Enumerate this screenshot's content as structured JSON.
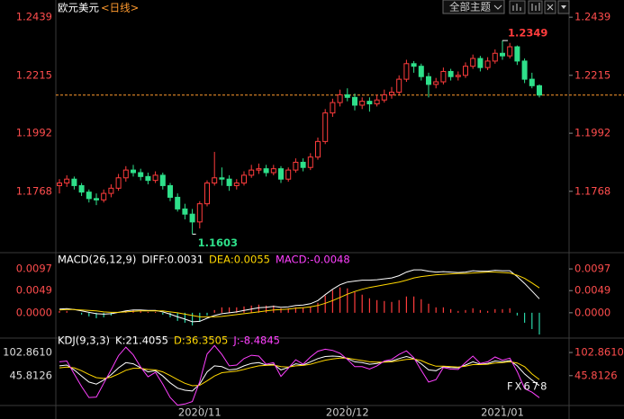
{
  "header": {
    "symbol": "欧元美元",
    "period": "<日线>",
    "theme_button": "全部主题"
  },
  "watermark": "FX678",
  "chart_data": [
    {
      "type": "candlestick",
      "categories": [
        null,
        null,
        null,
        null,
        null,
        null,
        null,
        null,
        null,
        null,
        null,
        null,
        null,
        null,
        null,
        null,
        null,
        null,
        null,
        "2020/11",
        null,
        null,
        null,
        null,
        null,
        null,
        null,
        null,
        null,
        null,
        null,
        null,
        null,
        null,
        null,
        null,
        null,
        null,
        null,
        "2020/12",
        null,
        null,
        null,
        null,
        null,
        null,
        null,
        null,
        null,
        null,
        null,
        null,
        null,
        null,
        null,
        null,
        null,
        null,
        null,
        null,
        "2021/01",
        null,
        null,
        null,
        null,
        null
      ],
      "open": [
        1.179,
        1.18,
        1.1815,
        1.179,
        1.1765,
        1.174,
        1.1735,
        1.176,
        1.178,
        1.182,
        1.185,
        1.184,
        1.1825,
        1.181,
        1.183,
        1.179,
        1.1745,
        1.17,
        1.168,
        1.165,
        1.172,
        1.18,
        1.182,
        1.1815,
        1.179,
        1.18,
        1.183,
        1.185,
        1.1855,
        1.184,
        1.1855,
        1.1815,
        1.185,
        1.188,
        1.186,
        1.19,
        1.196,
        1.207,
        1.211,
        1.214,
        1.213,
        1.21,
        1.2115,
        1.2105,
        1.212,
        1.214,
        1.215,
        1.22,
        1.226,
        1.225,
        1.221,
        1.218,
        1.219,
        1.223,
        1.221,
        1.2215,
        1.225,
        1.228,
        1.2245,
        1.227,
        1.23,
        1.229,
        1.2325,
        1.227,
        1.22,
        1.2175
      ],
      "high": [
        1.1815,
        1.183,
        1.1825,
        1.18,
        1.1775,
        1.176,
        1.1775,
        1.1795,
        1.1835,
        1.1865,
        1.187,
        1.1855,
        1.184,
        1.1845,
        1.184,
        1.18,
        1.176,
        1.172,
        1.17,
        1.173,
        1.181,
        1.192,
        1.186,
        1.183,
        1.1815,
        1.1845,
        1.187,
        1.1875,
        1.187,
        1.187,
        1.1865,
        1.186,
        1.1895,
        1.1895,
        1.1915,
        1.1975,
        1.2085,
        1.2125,
        1.216,
        1.2165,
        1.2145,
        1.213,
        1.213,
        1.214,
        1.216,
        1.217,
        1.2215,
        1.2275,
        1.227,
        1.226,
        1.2225,
        1.2205,
        1.2245,
        1.224,
        1.223,
        1.2265,
        1.2295,
        1.229,
        1.2285,
        1.2315,
        1.2349,
        1.234,
        1.233,
        1.228,
        1.2225,
        1.218
      ],
      "low": [
        1.176,
        1.1785,
        1.1775,
        1.175,
        1.1725,
        1.1715,
        1.1725,
        1.1745,
        1.177,
        1.1805,
        1.1825,
        1.181,
        1.1795,
        1.18,
        1.1775,
        1.173,
        1.169,
        1.166,
        1.1603,
        1.1625,
        1.171,
        1.179,
        1.179,
        1.177,
        1.1775,
        1.179,
        1.182,
        1.1835,
        1.1825,
        1.183,
        1.18,
        1.1805,
        1.184,
        1.1845,
        1.185,
        1.189,
        1.195,
        1.2055,
        1.2095,
        1.2115,
        1.208,
        1.2085,
        1.2075,
        1.2095,
        1.211,
        1.2125,
        1.214,
        1.219,
        1.2225,
        1.2195,
        1.213,
        1.2165,
        1.218,
        1.2195,
        1.2195,
        1.2205,
        1.224,
        1.223,
        1.2235,
        1.226,
        1.2275,
        1.228,
        1.2255,
        1.2185,
        1.2165,
        1.213
      ],
      "close": [
        1.18,
        1.1815,
        1.179,
        1.1765,
        1.174,
        1.1735,
        1.176,
        1.178,
        1.182,
        1.185,
        1.184,
        1.1825,
        1.181,
        1.183,
        1.179,
        1.1745,
        1.17,
        1.168,
        1.165,
        1.172,
        1.18,
        1.182,
        1.1815,
        1.179,
        1.18,
        1.183,
        1.185,
        1.1855,
        1.184,
        1.1855,
        1.1815,
        1.185,
        1.188,
        1.186,
        1.19,
        1.196,
        1.207,
        1.211,
        1.214,
        1.213,
        1.21,
        1.2115,
        1.2105,
        1.212,
        1.214,
        1.215,
        1.22,
        1.226,
        1.225,
        1.221,
        1.218,
        1.219,
        1.223,
        1.221,
        1.2215,
        1.225,
        1.228,
        1.2245,
        1.227,
        1.23,
        1.229,
        1.2325,
        1.227,
        1.22,
        1.2175,
        1.2139
      ],
      "up_color": "#ff3c3c",
      "down_color": "#2ee08a",
      "ylim": [
        1.1542,
        1.2488
      ],
      "yticks": [
        1.1768,
        1.1992,
        1.2215,
        1.2439
      ],
      "label_color": "#ff4d4d",
      "left_label_color": "#ff4d4d",
      "annotations": [
        1.2349,
        1.1603
      ],
      "last_price": 1.2139,
      "last_price_color": "#ff9a2e"
    },
    {
      "type": "macd",
      "title": "MACD(26,12,9)",
      "series": [
        {
          "name": "DIFF:0.0031",
          "color": "#ffffff",
          "values": [
            0.0008,
            0.0009,
            0.0007,
            0.0004,
            0.0001,
            -0.0002,
            -0.0003,
            -0.0002,
            0.0001,
            0.0004,
            0.0006,
            0.0006,
            0.0005,
            0.0005,
            0.0002,
            -0.0003,
            -0.0009,
            -0.0014,
            -0.002,
            -0.0019,
            -0.0012,
            -0.0006,
            -0.0002,
            0.0,
            0.0002,
            0.0005,
            0.0008,
            0.0011,
            0.0012,
            0.0014,
            0.0012,
            0.0013,
            0.0016,
            0.0017,
            0.002,
            0.0027,
            0.004,
            0.0052,
            0.0062,
            0.0068,
            0.007,
            0.0072,
            0.0072,
            0.0073,
            0.0075,
            0.0077,
            0.0082,
            0.009,
            0.0095,
            0.0095,
            0.0092,
            0.009,
            0.0091,
            0.009,
            0.0089,
            0.009,
            0.0093,
            0.0092,
            0.0092,
            0.0094,
            0.0093,
            0.0093,
            0.008,
            0.0065,
            0.0048,
            0.0031
          ]
        },
        {
          "name": "DEA:0.0055",
          "color": "#ffd700",
          "values": [
            0.0006,
            0.0007,
            0.0007,
            0.0006,
            0.0005,
            0.0004,
            0.0002,
            0.0001,
            0.0001,
            0.0002,
            0.0003,
            0.0004,
            0.0004,
            0.0004,
            0.0004,
            0.0002,
            0.0,
            -0.0003,
            -0.0006,
            -0.0009,
            -0.0009,
            -0.0009,
            -0.0008,
            -0.0006,
            -0.0004,
            -0.0002,
            0.0,
            0.0002,
            0.0004,
            0.0006,
            0.0007,
            0.0008,
            0.001,
            0.0011,
            0.0013,
            0.0016,
            0.0021,
            0.0027,
            0.0034,
            0.0041,
            0.0047,
            0.0052,
            0.0056,
            0.0059,
            0.0062,
            0.0065,
            0.0068,
            0.0072,
            0.0077,
            0.008,
            0.0082,
            0.0084,
            0.0085,
            0.0086,
            0.0087,
            0.0087,
            0.0088,
            0.0089,
            0.009,
            0.009,
            0.0089,
            0.0088,
            0.0083,
            0.0076,
            0.0066,
            0.0055
          ]
        },
        {
          "name": "MACD:-0.0048",
          "color": "#ff40ff",
          "style": "bar",
          "up_color": "#ff3c3c",
          "down_color": "#2ad6a8",
          "values": [
            0.0004,
            0.0004,
            0.0,
            -0.0004,
            -0.0008,
            -0.0012,
            -0.001,
            -0.0006,
            0.0,
            0.0004,
            0.0006,
            0.0004,
            0.0002,
            0.0002,
            -0.0004,
            -0.001,
            -0.0018,
            -0.0022,
            -0.0028,
            -0.002,
            -0.0006,
            0.0006,
            0.0012,
            0.0012,
            0.0012,
            0.0014,
            0.0016,
            0.0018,
            0.0016,
            0.0016,
            0.001,
            0.001,
            0.0012,
            0.0012,
            0.0014,
            0.0022,
            0.0038,
            0.005,
            0.0056,
            0.0054,
            0.0046,
            0.004,
            0.0032,
            0.0028,
            0.0026,
            0.0024,
            0.0028,
            0.0036,
            0.0036,
            0.003,
            0.002,
            0.0012,
            0.0012,
            0.0008,
            0.0004,
            0.0006,
            0.001,
            0.0006,
            0.0004,
            0.0008,
            0.0008,
            0.001,
            -0.0006,
            -0.0022,
            -0.0036,
            -0.0048
          ]
        }
      ],
      "ylim": [
        -0.0048,
        0.0119
      ],
      "yticks": [
        {
          "value": 0,
          "label": "0.0000"
        },
        0.0049,
        0.0097
      ],
      "label_color": "#ff4d4d",
      "left_label_color": "#ff4d4d"
    },
    {
      "type": "kdj",
      "title": "KDJ(9,3,3)",
      "series": [
        {
          "name": "K:21.4055",
          "color": "#ffffff",
          "values": [
            70,
            72,
            60,
            45,
            30,
            25,
            35,
            48,
            65,
            78,
            75,
            65,
            55,
            58,
            45,
            28,
            15,
            10,
            8,
            25,
            55,
            70,
            68,
            60,
            62,
            70,
            76,
            78,
            72,
            74,
            60,
            66,
            75,
            72,
            80,
            88,
            93,
            94,
            93,
            88,
            80,
            78,
            74,
            76,
            80,
            82,
            88,
            93,
            88,
            75,
            60,
            58,
            68,
            66,
            65,
            72,
            80,
            74,
            76,
            82,
            80,
            83,
            70,
            50,
            35,
            21.4055
          ]
        },
        {
          "name": "D:36.3505",
          "color": "#ffd700",
          "values": [
            65,
            67,
            65,
            58,
            49,
            41,
            39,
            42,
            50,
            59,
            64,
            64,
            61,
            60,
            55,
            46,
            36,
            27,
            21,
            22,
            33,
            45,
            53,
            55,
            57,
            61,
            66,
            70,
            71,
            72,
            68,
            67,
            70,
            71,
            74,
            79,
            84,
            87,
            89,
            89,
            86,
            83,
            80,
            79,
            79,
            80,
            83,
            86,
            87,
            83,
            75,
            69,
            69,
            68,
            67,
            69,
            73,
            73,
            74,
            77,
            78,
            80,
            77,
            68,
            50,
            36.3505
          ]
        },
        {
          "name": "J:-8.4845",
          "color": "#ff40ff",
          "values": [
            80,
            82,
            50,
            19,
            -8,
            -7,
            27,
            60,
            95,
            116,
            97,
            67,
            43,
            54,
            25,
            -8,
            -27,
            -24,
            -18,
            31,
            99,
            120,
            98,
            70,
            72,
            88,
            96,
            94,
            74,
            78,
            44,
            64,
            85,
            74,
            92,
            106,
            111,
            108,
            101,
            86,
            68,
            68,
            62,
            70,
            82,
            86,
            98,
            107,
            90,
            59,
            30,
            36,
            66,
            62,
            61,
            78,
            94,
            76,
            80,
            92,
            84,
            89,
            56,
            14,
            5,
            -8.4845
          ]
        }
      ],
      "ylim": [
        -30,
        134
      ],
      "yticks": [
        45.8126,
        {
          "value": 102.861,
          "label": "102.8610"
        }
      ],
      "label_color": "#ff4d4d",
      "left_label_color": "#dddddd"
    }
  ]
}
